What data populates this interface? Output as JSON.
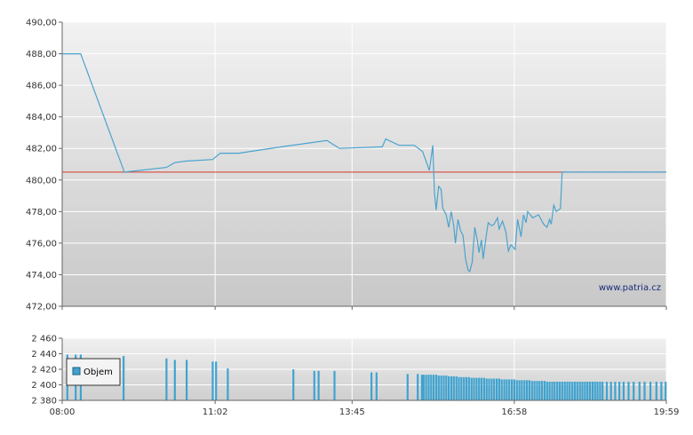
{
  "watermark": "www.patria.cz",
  "colors": {
    "line": "#4aa3cf",
    "reference": "#d23a2a",
    "bars": "#3fa3d0",
    "grid": "#ffffff",
    "axis": "#666666"
  },
  "chart_data": [
    {
      "type": "line",
      "title": "",
      "xlabel": "",
      "ylabel": "",
      "x_range": [
        "08:00",
        "19:59"
      ],
      "x_ticks": [
        "08:00",
        "11:02",
        "13:45",
        "16:58",
        "19:59"
      ],
      "y_ticks": [
        "472,00",
        "474,00",
        "476,00",
        "478,00",
        "480,00",
        "482,00",
        "484,00",
        "486,00",
        "488,00",
        "490,00"
      ],
      "ylim": [
        472,
        490
      ],
      "reference_line": 480.5,
      "grid": true,
      "series": [
        {
          "points": [
            [
              "08:00",
              488.0
            ],
            [
              "08:22",
              488.0
            ],
            [
              "09:14",
              480.5
            ],
            [
              "10:04",
              480.8
            ],
            [
              "10:14",
              481.1
            ],
            [
              "10:28",
              481.2
            ],
            [
              "10:59",
              481.3
            ],
            [
              "11:08",
              481.7
            ],
            [
              "11:30",
              481.7
            ],
            [
              "12:21",
              482.1
            ],
            [
              "13:15",
              482.5
            ],
            [
              "13:30",
              482.0
            ],
            [
              "14:21",
              482.1
            ],
            [
              "14:25",
              482.6
            ],
            [
              "14:41",
              482.2
            ],
            [
              "14:59",
              482.2
            ],
            [
              "15:09",
              481.8
            ],
            [
              "15:17",
              480.6
            ],
            [
              "15:21",
              482.2
            ],
            [
              "15:23",
              479.2
            ],
            [
              "15:25",
              478.1
            ],
            [
              "15:28",
              479.6
            ],
            [
              "15:31",
              479.4
            ],
            [
              "15:33",
              478.2
            ],
            [
              "15:37",
              477.8
            ],
            [
              "15:40",
              477.0
            ],
            [
              "15:43",
              478.0
            ],
            [
              "15:46",
              477.1
            ],
            [
              "15:48",
              476.0
            ],
            [
              "15:51",
              477.5
            ],
            [
              "15:54",
              476.8
            ],
            [
              "15:57",
              476.5
            ],
            [
              "16:00",
              475.0
            ],
            [
              "16:03",
              474.3
            ],
            [
              "16:05",
              474.2
            ],
            [
              "16:08",
              474.8
            ],
            [
              "16:11",
              477.0
            ],
            [
              "16:14",
              476.2
            ],
            [
              "16:16",
              475.4
            ],
            [
              "16:19",
              476.2
            ],
            [
              "16:21",
              475.0
            ],
            [
              "16:25",
              476.6
            ],
            [
              "16:27",
              477.3
            ],
            [
              "16:31",
              477.1
            ],
            [
              "16:34",
              477.2
            ],
            [
              "16:38",
              477.6
            ],
            [
              "16:40",
              476.9
            ],
            [
              "16:44",
              477.4
            ],
            [
              "16:48",
              476.7
            ],
            [
              "16:51",
              475.5
            ],
            [
              "16:54",
              475.9
            ],
            [
              "16:59",
              475.6
            ],
            [
              "17:02",
              477.5
            ],
            [
              "17:06",
              476.4
            ],
            [
              "17:09",
              477.8
            ],
            [
              "17:12",
              477.3
            ],
            [
              "17:14",
              478.0
            ],
            [
              "17:20",
              477.6
            ],
            [
              "17:27",
              477.8
            ],
            [
              "17:33",
              477.2
            ],
            [
              "17:37",
              477.0
            ],
            [
              "17:40",
              477.5
            ],
            [
              "17:42",
              477.2
            ],
            [
              "17:45",
              478.4
            ],
            [
              "17:48",
              478.0
            ],
            [
              "17:53",
              478.2
            ],
            [
              "17:55",
              480.5
            ],
            [
              "19:59",
              480.5
            ]
          ]
        }
      ]
    },
    {
      "type": "bar",
      "title": "",
      "xlabel": "",
      "ylabel": "",
      "legend": {
        "label": "Objem",
        "position": "left"
      },
      "y_ticks": [
        "2 380",
        "2 400",
        "2 420",
        "2 440",
        "2 460"
      ],
      "ylim": [
        2380,
        2460
      ],
      "x_ticks": [
        "08:00",
        "11:02",
        "13:45",
        "16:58",
        "19:59"
      ],
      "x_range": [
        "08:00",
        "19:59"
      ],
      "series": [
        {
          "name": "Objem",
          "bars": [
            [
              "08:06",
              2439
            ],
            [
              "08:16",
              2439
            ],
            [
              "08:22",
              2439
            ],
            [
              "09:13",
              2437
            ],
            [
              "10:04",
              2434
            ],
            [
              "10:14",
              2432
            ],
            [
              "10:28",
              2432
            ],
            [
              "10:59",
              2430
            ],
            [
              "11:03",
              2430
            ],
            [
              "11:17",
              2421
            ],
            [
              "12:35",
              2420
            ],
            [
              "13:00",
              2418
            ],
            [
              "13:05",
              2418
            ],
            [
              "13:24",
              2418
            ],
            [
              "14:08",
              2416
            ],
            [
              "14:14",
              2416
            ],
            [
              "14:51",
              2414
            ],
            [
              "15:03",
              2414
            ],
            [
              "15:08",
              2413
            ],
            [
              "15:10",
              2413
            ],
            [
              "15:13",
              2413
            ],
            [
              "15:16",
              2413
            ],
            [
              "15:19",
              2413
            ],
            [
              "15:22",
              2413
            ],
            [
              "15:25",
              2413
            ],
            [
              "15:28",
              2412
            ],
            [
              "15:31",
              2412
            ],
            [
              "15:34",
              2412
            ],
            [
              "15:37",
              2412
            ],
            [
              "15:40",
              2411
            ],
            [
              "15:43",
              2411
            ],
            [
              "15:46",
              2411
            ],
            [
              "15:49",
              2411
            ],
            [
              "15:52",
              2410
            ],
            [
              "15:55",
              2410
            ],
            [
              "15:58",
              2410
            ],
            [
              "16:01",
              2410
            ],
            [
              "16:04",
              2410
            ],
            [
              "16:07",
              2409
            ],
            [
              "16:10",
              2409
            ],
            [
              "16:13",
              2409
            ],
            [
              "16:16",
              2409
            ],
            [
              "16:19",
              2409
            ],
            [
              "16:22",
              2409
            ],
            [
              "16:25",
              2408
            ],
            [
              "16:28",
              2408
            ],
            [
              "16:31",
              2408
            ],
            [
              "16:34",
              2408
            ],
            [
              "16:37",
              2408
            ],
            [
              "16:40",
              2408
            ],
            [
              "16:43",
              2407
            ],
            [
              "16:46",
              2407
            ],
            [
              "16:49",
              2407
            ],
            [
              "16:52",
              2407
            ],
            [
              "16:55",
              2407
            ],
            [
              "16:58",
              2407
            ],
            [
              "17:01",
              2406
            ],
            [
              "17:04",
              2406
            ],
            [
              "17:07",
              2406
            ],
            [
              "17:10",
              2406
            ],
            [
              "17:13",
              2406
            ],
            [
              "17:16",
              2406
            ],
            [
              "17:19",
              2405
            ],
            [
              "17:22",
              2405
            ],
            [
              "17:25",
              2405
            ],
            [
              "17:28",
              2405
            ],
            [
              "17:31",
              2405
            ],
            [
              "17:34",
              2405
            ],
            [
              "17:37",
              2404
            ],
            [
              "17:40",
              2404
            ],
            [
              "17:43",
              2404
            ],
            [
              "17:46",
              2404
            ],
            [
              "17:49",
              2404
            ],
            [
              "17:52",
              2404
            ],
            [
              "17:55",
              2404
            ],
            [
              "17:58",
              2404
            ],
            [
              "18:01",
              2404
            ],
            [
              "18:04",
              2404
            ],
            [
              "18:07",
              2404
            ],
            [
              "18:10",
              2404
            ],
            [
              "18:13",
              2404
            ],
            [
              "18:16",
              2404
            ],
            [
              "18:19",
              2404
            ],
            [
              "18:22",
              2404
            ],
            [
              "18:25",
              2404
            ],
            [
              "18:28",
              2404
            ],
            [
              "18:31",
              2404
            ],
            [
              "18:34",
              2404
            ],
            [
              "18:37",
              2404
            ],
            [
              "18:40",
              2404
            ],
            [
              "18:43",
              2404
            ],
            [
              "18:48",
              2404
            ],
            [
              "18:53",
              2404
            ],
            [
              "18:58",
              2404
            ],
            [
              "19:03",
              2404
            ],
            [
              "19:08",
              2404
            ],
            [
              "19:14",
              2404
            ],
            [
              "19:20",
              2404
            ],
            [
              "19:27",
              2404
            ],
            [
              "19:33",
              2404
            ],
            [
              "19:40",
              2404
            ],
            [
              "19:47",
              2404
            ],
            [
              "19:53",
              2404
            ],
            [
              "19:58",
              2404
            ]
          ]
        }
      ]
    }
  ]
}
